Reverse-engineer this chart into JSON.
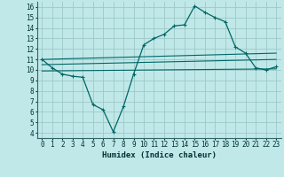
{
  "xlabel": "Humidex (Indice chaleur)",
  "background_color": "#c0e8e8",
  "grid_color": "#9ec8c8",
  "line_color": "#006666",
  "xlim": [
    -0.5,
    23.5
  ],
  "ylim": [
    3.5,
    16.5
  ],
  "xticks": [
    0,
    1,
    2,
    3,
    4,
    5,
    6,
    7,
    8,
    9,
    10,
    11,
    12,
    13,
    14,
    15,
    16,
    17,
    18,
    19,
    20,
    21,
    22,
    23
  ],
  "yticks": [
    4,
    5,
    6,
    7,
    8,
    9,
    10,
    11,
    12,
    13,
    14,
    15,
    16
  ],
  "main_x": [
    0,
    1,
    2,
    3,
    4,
    5,
    6,
    7,
    8,
    9,
    10,
    11,
    12,
    13,
    14,
    15,
    16,
    17,
    18,
    19,
    20,
    21,
    22,
    23
  ],
  "main_y": [
    11.0,
    10.2,
    9.6,
    9.4,
    9.3,
    6.7,
    6.2,
    4.1,
    6.5,
    9.6,
    12.4,
    13.0,
    13.4,
    14.2,
    14.3,
    16.1,
    15.5,
    15.0,
    14.6,
    12.2,
    11.6,
    10.2,
    10.0,
    10.3
  ],
  "line2_x": [
    0,
    23
  ],
  "line2_y": [
    11.0,
    11.6
  ],
  "line3_x": [
    0,
    23
  ],
  "line3_y": [
    10.5,
    11.0
  ],
  "line4_x": [
    0,
    23
  ],
  "line4_y": [
    9.9,
    10.1
  ]
}
